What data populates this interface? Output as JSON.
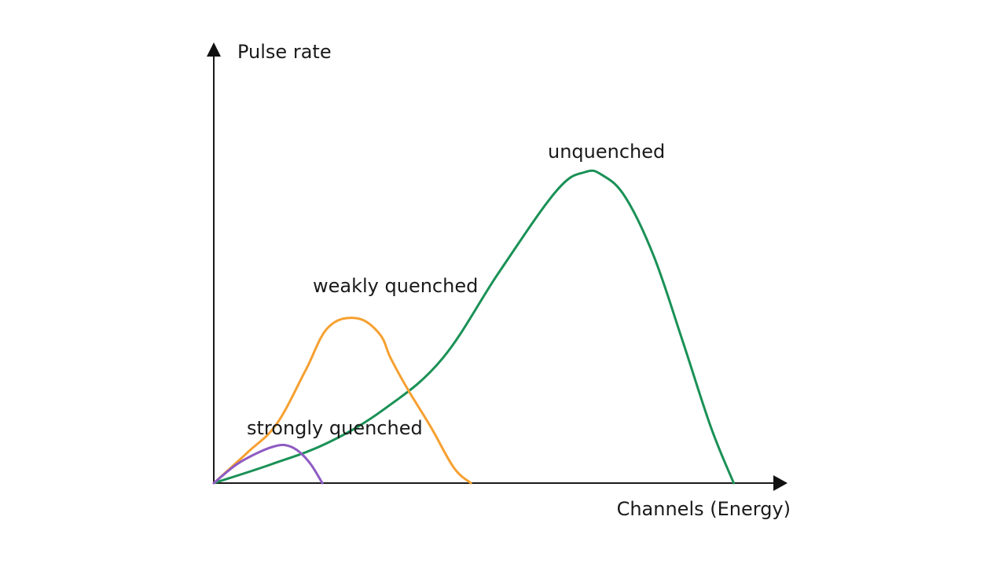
{
  "chart_data": {
    "type": "line",
    "title": "",
    "ylabel": "Pulse rate",
    "xlabel": "Channels (Energy)",
    "xlim": [
      0,
      100
    ],
    "ylim": [
      0,
      100
    ],
    "grid": false,
    "legend": "none",
    "series": [
      {
        "name": "strongly quenched",
        "color": "#8e5bc3",
        "x": [
          0,
          4,
          8,
          11,
          13,
          15,
          17,
          19
        ],
        "y": [
          0,
          6,
          10,
          12,
          12,
          10,
          6,
          0
        ]
      },
      {
        "name": "weakly quenched",
        "color": "#f6a030",
        "x": [
          0,
          6,
          11,
          16,
          20,
          25,
          29,
          31,
          34,
          38,
          42,
          45
        ],
        "y": [
          0,
          10,
          19,
          36,
          50,
          53,
          48,
          40,
          30,
          18,
          5,
          0
        ]
      },
      {
        "name": "unquenched",
        "color": "#1a9156",
        "x": [
          0,
          10,
          20,
          30,
          40,
          50,
          60,
          65,
          68,
          72,
          77,
          82,
          87,
          91
        ],
        "y": [
          0,
          6,
          13,
          24,
          40,
          68,
          94,
          100,
          99,
          92,
          73,
          46,
          18,
          0
        ]
      }
    ]
  }
}
